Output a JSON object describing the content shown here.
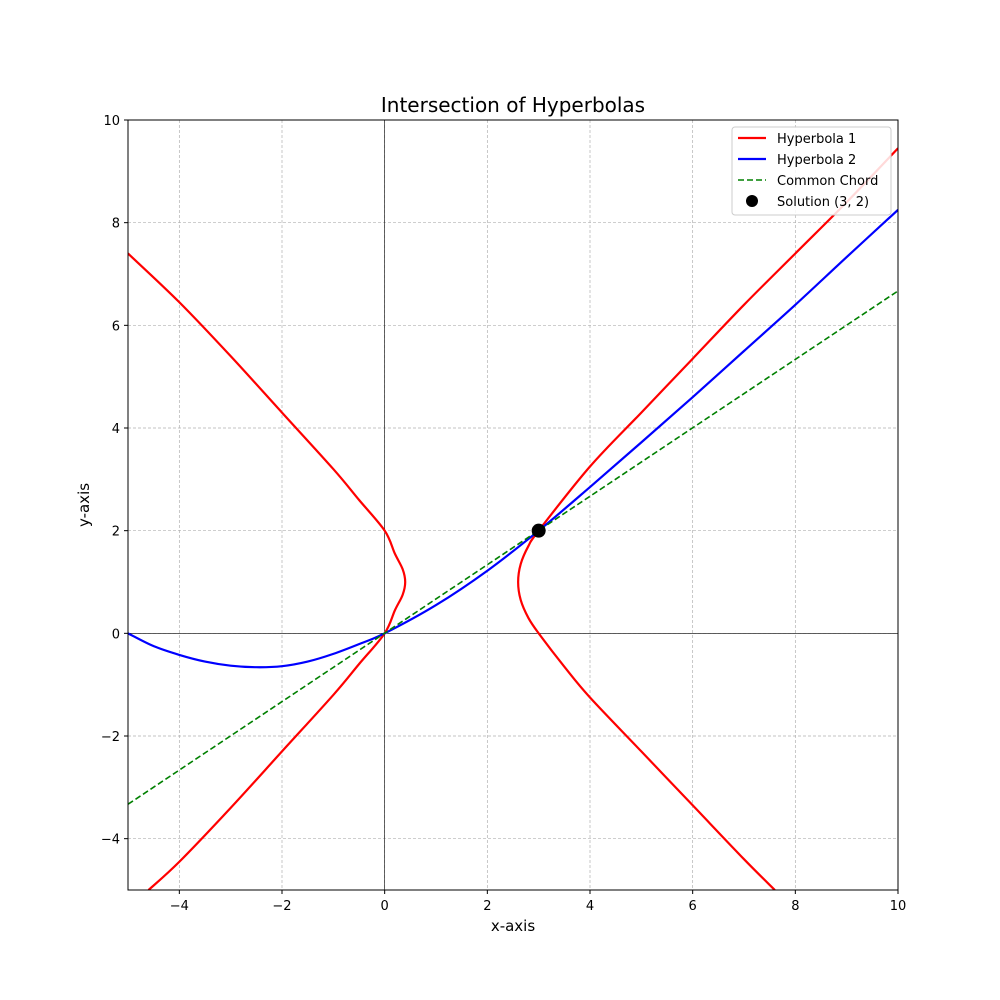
{
  "chart_data": {
    "type": "line",
    "title": "Intersection of Hyperbolas",
    "xlabel": "x-axis",
    "ylabel": "y-axis",
    "xlim": [
      -5,
      10
    ],
    "ylim": [
      -5,
      10
    ],
    "grid": true,
    "legend_position": "top-right",
    "x_ticks": [
      -4,
      -2,
      0,
      2,
      4,
      6,
      8,
      10
    ],
    "y_ticks": [
      -4,
      -2,
      0,
      2,
      4,
      6,
      8,
      10
    ],
    "x_tick_labels": [
      "−4",
      "−2",
      "0",
      "2",
      "4",
      "6",
      "8",
      "10"
    ],
    "y_tick_labels": [
      "−4",
      "−2",
      "0",
      "2",
      "4",
      "6",
      "8",
      "10"
    ],
    "series": [
      {
        "name": "Hyperbola 1",
        "color": "#ff0000",
        "style": "solid",
        "branches": [
          {
            "x": [
              -5.0,
              -4.0,
              -3.0,
              -2.0,
              -1.0,
              -0.5,
              0.0,
              0.2,
              0.35,
              0.4,
              0.35,
              0.2,
              0.0,
              -0.5,
              -1.0,
              -2.0,
              -3.0,
              -4.0,
              -4.6
            ],
            "y": [
              7.4,
              6.45,
              5.4,
              4.3,
              3.2,
              2.6,
              2.0,
              1.55,
              1.25,
              1.0,
              0.75,
              0.45,
              0.0,
              -0.6,
              -1.2,
              -2.3,
              -3.4,
              -4.45,
              -5.0
            ]
          },
          {
            "x": [
              10.0,
              9.0,
              8.0,
              7.0,
              6.0,
              5.0,
              4.0,
              3.0,
              2.8,
              2.65,
              2.6,
              2.65,
              2.8,
              3.0,
              3.5,
              4.0,
              5.0,
              6.0,
              7.0,
              7.6
            ],
            "y": [
              9.45,
              8.4,
              7.4,
              6.4,
              5.35,
              4.3,
              3.25,
              2.0,
              1.7,
              1.35,
              1.0,
              0.65,
              0.3,
              0.0,
              -0.65,
              -1.25,
              -2.3,
              -3.35,
              -4.4,
              -5.0
            ]
          }
        ]
      },
      {
        "name": "Hyperbola 2",
        "color": "#0000ff",
        "style": "solid",
        "branches": [
          {
            "x": [
              -5.0,
              -4.5,
              -4.0,
              -3.5,
              -3.0,
              -2.5,
              -2.0,
              -1.5,
              -1.0,
              -0.5,
              0.0,
              1.0,
              2.0,
              3.0,
              4.0,
              5.0,
              6.0,
              7.0,
              8.0,
              9.0,
              10.0
            ],
            "y": [
              0.0,
              -0.25,
              -0.42,
              -0.55,
              -0.63,
              -0.66,
              -0.64,
              -0.55,
              -0.4,
              -0.21,
              0.0,
              0.55,
              1.22,
              2.0,
              2.85,
              3.72,
              4.6,
              5.5,
              6.4,
              7.33,
              8.25
            ]
          }
        ]
      },
      {
        "name": "Common Chord",
        "color": "#008000",
        "style": "dashed",
        "branches": [
          {
            "x": [
              -5.0,
              10.0
            ],
            "y": [
              -3.33,
              6.67
            ]
          }
        ]
      },
      {
        "name": "Solution (3, 2)",
        "color": "#000000",
        "style": "marker",
        "points": [
          {
            "x": 3,
            "y": 2
          }
        ]
      }
    ]
  }
}
